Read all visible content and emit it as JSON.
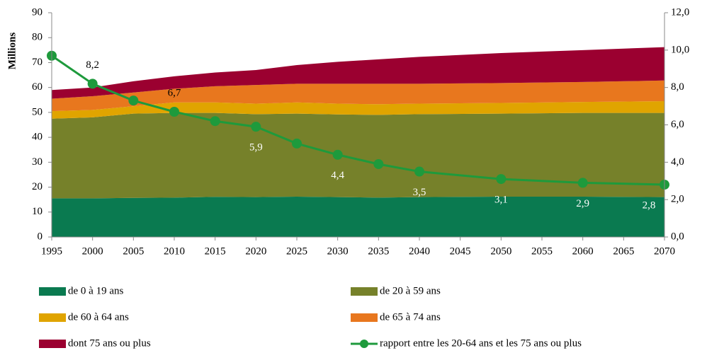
{
  "chart_data": {
    "type": "stacked-area-line",
    "ylabel": "Millions",
    "x": [
      1995,
      2000,
      2005,
      2010,
      2015,
      2020,
      2025,
      2030,
      2035,
      2040,
      2050,
      2060,
      2070
    ],
    "xlim": [
      1995,
      2070
    ],
    "xticks": [
      1995,
      2000,
      2005,
      2010,
      2015,
      2020,
      2025,
      2030,
      2035,
      2040,
      2045,
      2050,
      2055,
      2060,
      2065,
      2070
    ],
    "ylim": [
      0,
      90
    ],
    "yticks": [
      0,
      10,
      20,
      30,
      40,
      50,
      60,
      70,
      80,
      90
    ],
    "y2lim": [
      0,
      12
    ],
    "y2ticks": [
      {
        "value": 0,
        "label": "0,0"
      },
      {
        "value": 2,
        "label": "2,0"
      },
      {
        "value": 4,
        "label": "4,0"
      },
      {
        "value": 6,
        "label": "6,0"
      },
      {
        "value": 8,
        "label": "8,0"
      },
      {
        "value": 10,
        "label": "10,0"
      },
      {
        "value": 12,
        "label": "12,0"
      }
    ],
    "series": [
      {
        "name": "de 0 à 19 ans",
        "color": "#0a7a50",
        "values": [
          15.5,
          15.5,
          15.7,
          15.8,
          16.1,
          16.0,
          16.2,
          16.0,
          15.8,
          16.0,
          16.2,
          16.2,
          16.0
        ]
      },
      {
        "name": "de 20 à 59 ans",
        "color": "#76812a",
        "values": [
          32.0,
          32.5,
          33.8,
          34.0,
          33.7,
          33.3,
          33.3,
          33.2,
          33.2,
          33.3,
          33.3,
          33.6,
          33.8
        ]
      },
      {
        "name": "de 60 à 64 ans",
        "color": "#e0a400",
        "values": [
          3.0,
          3.0,
          3.0,
          4.2,
          4.2,
          4.2,
          4.5,
          4.3,
          4.3,
          4.2,
          4.3,
          4.4,
          4.7
        ]
      },
      {
        "name": "de 65 à 74 ans",
        "color": "#e8771e",
        "values": [
          5.0,
          5.5,
          5.5,
          5.5,
          6.5,
          7.5,
          7.5,
          8.0,
          8.2,
          8.0,
          8.0,
          8.0,
          8.3
        ]
      },
      {
        "name": "dont 75 ans ou plus",
        "color": "#9b0030",
        "values": [
          3.5,
          3.5,
          4.5,
          5.0,
          5.5,
          6.0,
          7.5,
          8.8,
          9.8,
          10.8,
          12.0,
          12.8,
          13.4
        ]
      },
      {
        "name": "rapport entre les 20-64 ans et les 75 ans ou plus",
        "color": "#1e9a3c",
        "axis": "y2",
        "values": [
          9.7,
          8.2,
          7.3,
          6.7,
          6.2,
          5.9,
          5.0,
          4.4,
          3.9,
          3.5,
          3.1,
          2.9,
          2.8
        ],
        "value_labels": [
          null,
          "8,2",
          null,
          "6,7",
          null,
          "5,9",
          null,
          "4,4",
          null,
          "3,5",
          "3,1",
          "2,9",
          "2,8"
        ]
      }
    ]
  }
}
